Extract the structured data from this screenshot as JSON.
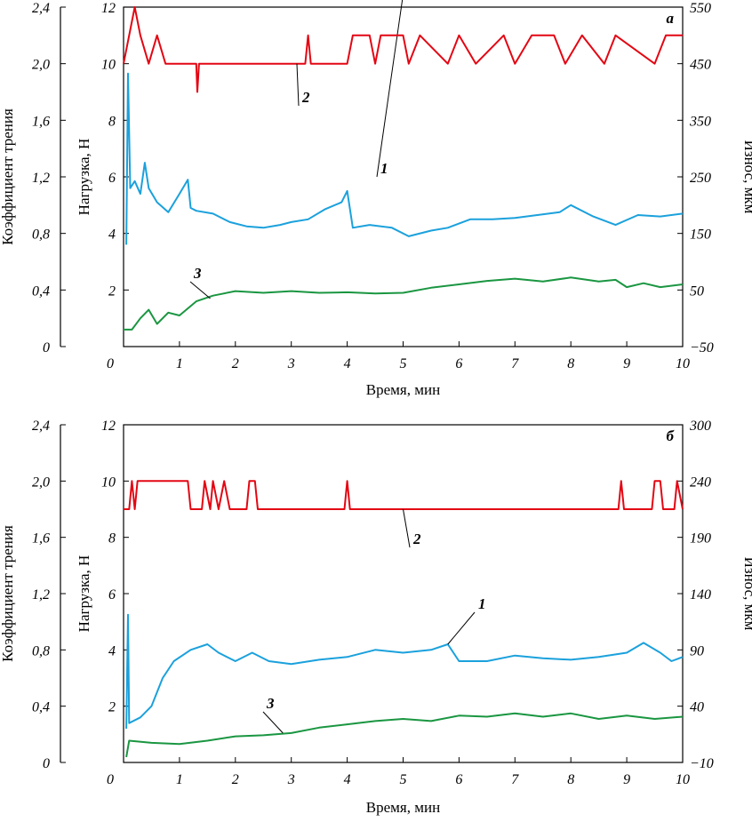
{
  "chart_data": [
    {
      "type": "line",
      "panel_label": "а",
      "xlabel": "Время, мин",
      "xlim": [
        0,
        10
      ],
      "xticks": [
        "0",
        "1",
        "2",
        "3",
        "4",
        "5",
        "6",
        "7",
        "8",
        "9",
        "10"
      ],
      "ylabel_left_outer": "Коэффициент трения",
      "ylim_left_outer": [
        0,
        2.4
      ],
      "yticks_left_outer": [
        "0",
        "0,4",
        "0,8",
        "1,2",
        "1,6",
        "2,0",
        "2,4"
      ],
      "ylabel_left_inner": "Нагрузка, Н",
      "ylim_left_inner": [
        0,
        12
      ],
      "yticks_left_inner": [
        "2",
        "4",
        "6",
        "8",
        "10",
        "12"
      ],
      "ylabel_right": "Износ, мкм",
      "ylim_right": [
        -50,
        550
      ],
      "yticks_right": [
        "−50",
        "50",
        "150",
        "250",
        "350",
        "450",
        "550"
      ],
      "grid": false,
      "colors": {
        "friction": "#1ba1dc",
        "load": "#e30613",
        "wear": "#1a9641"
      },
      "series": [
        {
          "label": "1",
          "axis": "left_outer",
          "points": [
            [
              0.05,
              0.72
            ],
            [
              0.08,
              1.93
            ],
            [
              0.12,
              1.12
            ],
            [
              0.2,
              1.17
            ],
            [
              0.3,
              1.08
            ],
            [
              0.38,
              1.3
            ],
            [
              0.45,
              1.12
            ],
            [
              0.6,
              1.02
            ],
            [
              0.8,
              0.95
            ],
            [
              1.0,
              1.08
            ],
            [
              1.15,
              1.18
            ],
            [
              1.2,
              0.98
            ],
            [
              1.3,
              0.96
            ],
            [
              1.6,
              0.94
            ],
            [
              1.9,
              0.88
            ],
            [
              2.2,
              0.85
            ],
            [
              2.5,
              0.84
            ],
            [
              2.8,
              0.86
            ],
            [
              3.0,
              0.88
            ],
            [
              3.3,
              0.9
            ],
            [
              3.6,
              0.97
            ],
            [
              3.9,
              1.02
            ],
            [
              4.0,
              1.1
            ],
            [
              4.1,
              0.84
            ],
            [
              4.4,
              0.86
            ],
            [
              4.8,
              0.84
            ],
            [
              5.1,
              0.78
            ],
            [
              5.5,
              0.82
            ],
            [
              5.8,
              0.84
            ],
            [
              6.2,
              0.9
            ],
            [
              6.6,
              0.9
            ],
            [
              7.0,
              0.91
            ],
            [
              7.4,
              0.93
            ],
            [
              7.8,
              0.95
            ],
            [
              8.0,
              1.0
            ],
            [
              8.4,
              0.92
            ],
            [
              8.8,
              0.86
            ],
            [
              9.2,
              0.93
            ],
            [
              9.6,
              0.92
            ],
            [
              10.0,
              0.94
            ]
          ]
        },
        {
          "label": "2",
          "axis": "left_inner",
          "points": [
            [
              0.0,
              10.0
            ],
            [
              0.1,
              11.0
            ],
            [
              0.2,
              12.0
            ],
            [
              0.3,
              11.0
            ],
            [
              0.45,
              10.0
            ],
            [
              0.6,
              11.0
            ],
            [
              0.75,
              10.0
            ],
            [
              1.3,
              10.0
            ],
            [
              1.32,
              9.0
            ],
            [
              1.35,
              10.0
            ],
            [
              3.25,
              10.0
            ],
            [
              3.3,
              11.0
            ],
            [
              3.35,
              10.0
            ],
            [
              4.0,
              10.0
            ],
            [
              4.1,
              11.0
            ],
            [
              4.4,
              11.0
            ],
            [
              4.5,
              10.0
            ],
            [
              4.6,
              11.0
            ],
            [
              5.0,
              11.0
            ],
            [
              5.1,
              10.0
            ],
            [
              5.3,
              11.0
            ],
            [
              5.8,
              10.0
            ],
            [
              6.0,
              11.0
            ],
            [
              6.3,
              10.0
            ],
            [
              6.8,
              11.0
            ],
            [
              7.0,
              10.0
            ],
            [
              7.3,
              11.0
            ],
            [
              7.7,
              11.0
            ],
            [
              7.9,
              10.0
            ],
            [
              8.2,
              11.0
            ],
            [
              8.6,
              10.0
            ],
            [
              8.8,
              11.0
            ],
            [
              9.5,
              10.0
            ],
            [
              9.7,
              11.0
            ],
            [
              10.0,
              11.0
            ]
          ]
        },
        {
          "label": "3",
          "axis": "right",
          "points": [
            [
              0.0,
              -20
            ],
            [
              0.15,
              -20
            ],
            [
              0.3,
              0
            ],
            [
              0.45,
              15
            ],
            [
              0.6,
              -10
            ],
            [
              0.8,
              10
            ],
            [
              1.0,
              5
            ],
            [
              1.3,
              30
            ],
            [
              1.6,
              40
            ],
            [
              2.0,
              48
            ],
            [
              2.5,
              45
            ],
            [
              3.0,
              48
            ],
            [
              3.5,
              45
            ],
            [
              4.0,
              46
            ],
            [
              4.5,
              44
            ],
            [
              5.0,
              45
            ],
            [
              5.5,
              54
            ],
            [
              6.0,
              60
            ],
            [
              6.5,
              66
            ],
            [
              7.0,
              70
            ],
            [
              7.5,
              65
            ],
            [
              8.0,
              72
            ],
            [
              8.5,
              65
            ],
            [
              8.8,
              68
            ],
            [
              9.0,
              55
            ],
            [
              9.3,
              62
            ],
            [
              9.6,
              55
            ],
            [
              10.0,
              60
            ]
          ]
        }
      ]
    },
    {
      "type": "line",
      "panel_label": "б",
      "xlabel": "Время, мин",
      "xlim": [
        0,
        10
      ],
      "xticks": [
        "0",
        "1",
        "2",
        "3",
        "4",
        "5",
        "6",
        "7",
        "8",
        "9",
        "10"
      ],
      "ylabel_left_outer": "Коэффициент трения",
      "ylim_left_outer": [
        0,
        2.4
      ],
      "yticks_left_outer": [
        "0",
        "0,4",
        "0,8",
        "1,2",
        "1,6",
        "2,0",
        "2,4"
      ],
      "ylabel_left_inner": "Нагрузка, Н",
      "ylim_left_inner": [
        0,
        12
      ],
      "yticks_left_inner": [
        "2",
        "4",
        "6",
        "8",
        "10",
        "12"
      ],
      "ylabel_right": "Износ, мкм",
      "ylim_right": [
        -10,
        300
      ],
      "yticks_right": [
        "−10",
        "40",
        "90",
        "140",
        "190",
        "240",
        "300"
      ],
      "grid": false,
      "colors": {
        "friction": "#1ba1dc",
        "load": "#e30613",
        "wear": "#1a9641"
      },
      "series": [
        {
          "label": "1",
          "axis": "left_outer",
          "points": [
            [
              0.05,
              0.24
            ],
            [
              0.08,
              1.05
            ],
            [
              0.1,
              0.28
            ],
            [
              0.3,
              0.32
            ],
            [
              0.5,
              0.4
            ],
            [
              0.7,
              0.6
            ],
            [
              0.9,
              0.72
            ],
            [
              1.2,
              0.8
            ],
            [
              1.5,
              0.84
            ],
            [
              1.7,
              0.78
            ],
            [
              2.0,
              0.72
            ],
            [
              2.3,
              0.78
            ],
            [
              2.6,
              0.72
            ],
            [
              3.0,
              0.7
            ],
            [
              3.5,
              0.73
            ],
            [
              4.0,
              0.75
            ],
            [
              4.5,
              0.8
            ],
            [
              5.0,
              0.78
            ],
            [
              5.5,
              0.8
            ],
            [
              5.8,
              0.84
            ],
            [
              6.0,
              0.72
            ],
            [
              6.5,
              0.72
            ],
            [
              7.0,
              0.76
            ],
            [
              7.5,
              0.74
            ],
            [
              8.0,
              0.73
            ],
            [
              8.5,
              0.75
            ],
            [
              9.0,
              0.78
            ],
            [
              9.3,
              0.85
            ],
            [
              9.6,
              0.78
            ],
            [
              9.8,
              0.72
            ],
            [
              10.0,
              0.75
            ]
          ]
        },
        {
          "label": "2",
          "axis": "left_inner",
          "points": [
            [
              0.0,
              9.0
            ],
            [
              0.1,
              9.0
            ],
            [
              0.15,
              10.0
            ],
            [
              0.2,
              9.0
            ],
            [
              0.25,
              10.0
            ],
            [
              1.15,
              10.0
            ],
            [
              1.2,
              9.0
            ],
            [
              1.4,
              9.0
            ],
            [
              1.45,
              10.0
            ],
            [
              1.55,
              9.0
            ],
            [
              1.6,
              10.0
            ],
            [
              1.7,
              9.0
            ],
            [
              1.8,
              10.0
            ],
            [
              1.9,
              9.0
            ],
            [
              2.2,
              9.0
            ],
            [
              2.25,
              10.0
            ],
            [
              2.35,
              10.0
            ],
            [
              2.4,
              9.0
            ],
            [
              3.95,
              9.0
            ],
            [
              4.0,
              10.0
            ],
            [
              4.05,
              9.0
            ],
            [
              8.85,
              9.0
            ],
            [
              8.9,
              10.0
            ],
            [
              8.95,
              9.0
            ],
            [
              9.45,
              9.0
            ],
            [
              9.5,
              10.0
            ],
            [
              9.6,
              10.0
            ],
            [
              9.65,
              9.0
            ],
            [
              9.85,
              9.0
            ],
            [
              9.9,
              10.0
            ],
            [
              10.0,
              9.0
            ]
          ]
        },
        {
          "label": "3",
          "axis": "right",
          "points": [
            [
              0.05,
              -5
            ],
            [
              0.1,
              10
            ],
            [
              0.5,
              8
            ],
            [
              1.0,
              7
            ],
            [
              1.5,
              10
            ],
            [
              2.0,
              14
            ],
            [
              2.5,
              15
            ],
            [
              3.0,
              17
            ],
            [
              3.5,
              22
            ],
            [
              4.0,
              25
            ],
            [
              4.5,
              28
            ],
            [
              5.0,
              30
            ],
            [
              5.5,
              28
            ],
            [
              6.0,
              33
            ],
            [
              6.5,
              32
            ],
            [
              7.0,
              35
            ],
            [
              7.5,
              32
            ],
            [
              8.0,
              35
            ],
            [
              8.5,
              30
            ],
            [
              9.0,
              33
            ],
            [
              9.5,
              30
            ],
            [
              10.0,
              32
            ]
          ]
        }
      ]
    }
  ]
}
